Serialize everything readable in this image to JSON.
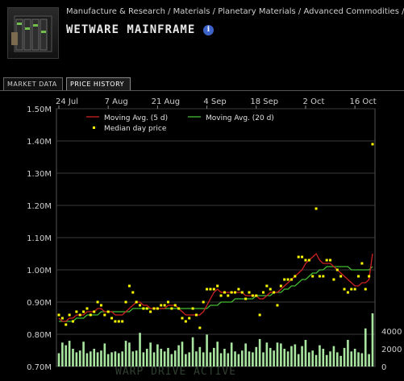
{
  "header": {
    "breadcrumb": "Manufacture & Research / Materials / Planetary Materials / Advanced Commodities /",
    "title": "WETWARE MAINFRAME",
    "info_icon": "info-icon"
  },
  "tabs": [
    {
      "label": "MARKET DATA",
      "active": false
    },
    {
      "label": "PRICE HISTORY",
      "active": true
    }
  ],
  "watermark": "WARP DRIVE ACTIVE",
  "colors": {
    "ma5": "#cc2222",
    "ma20": "#44bb33",
    "median": "#ffff00",
    "volume": "#a8e6a0",
    "grid": "#3a3a3a"
  },
  "chart_data": {
    "type": "line",
    "x_ticks": [
      "24 Jul",
      "7 Aug",
      "21 Aug",
      "4 Sep",
      "18 Sep",
      "2 Oct",
      "16 Oct"
    ],
    "y_ticks": [
      "1.50M",
      "1.40M",
      "1.30M",
      "1.20M",
      "1.10M",
      "1.00M",
      "0.90M",
      "0.80M",
      "0.70M"
    ],
    "ylim": [
      0.7,
      1.5
    ],
    "volume_ticks": [
      "4000",
      "2000",
      "0"
    ],
    "volume_lim": [
      0,
      5000
    ],
    "legend": [
      "Moving Avg. (5 d)",
      "Moving Avg. (20 d)",
      "Median day price"
    ],
    "legend_position": "top-left",
    "grid": true,
    "median": [
      0.86,
      0.85,
      0.83,
      0.86,
      0.84,
      0.87,
      0.86,
      0.87,
      0.88,
      0.86,
      0.87,
      0.9,
      0.89,
      0.86,
      0.87,
      0.85,
      0.84,
      0.84,
      0.84,
      0.9,
      0.95,
      0.93,
      0.9,
      0.89,
      0.88,
      0.88,
      0.87,
      0.88,
      0.88,
      0.89,
      0.89,
      0.9,
      0.88,
      0.89,
      0.88,
      0.85,
      0.84,
      0.85,
      0.88,
      0.86,
      0.82,
      0.9,
      0.94,
      0.94,
      0.94,
      0.95,
      0.92,
      0.93,
      0.92,
      0.93,
      0.93,
      0.94,
      0.93,
      0.91,
      0.93,
      0.92,
      0.92,
      0.86,
      0.93,
      0.95,
      0.94,
      0.93,
      0.89,
      0.95,
      0.97,
      0.97,
      0.97,
      0.98,
      1.04,
      1.04,
      1.03,
      1.03,
      0.98,
      1.19,
      0.98,
      0.98,
      1.03,
      1.03,
      0.97,
      1.0,
      0.98,
      0.94,
      0.93,
      0.94,
      0.94,
      0.98,
      1.02,
      0.94,
      0.98,
      1.39
    ],
    "ma5": [
      0.85,
      0.84,
      0.84,
      0.85,
      0.85,
      0.86,
      0.86,
      0.86,
      0.87,
      0.87,
      0.87,
      0.88,
      0.88,
      0.87,
      0.87,
      0.87,
      0.86,
      0.86,
      0.86,
      0.87,
      0.88,
      0.89,
      0.9,
      0.9,
      0.89,
      0.89,
      0.88,
      0.88,
      0.88,
      0.88,
      0.88,
      0.89,
      0.89,
      0.89,
      0.88,
      0.87,
      0.86,
      0.86,
      0.86,
      0.86,
      0.86,
      0.87,
      0.89,
      0.91,
      0.93,
      0.94,
      0.93,
      0.93,
      0.93,
      0.93,
      0.93,
      0.93,
      0.93,
      0.92,
      0.92,
      0.92,
      0.92,
      0.91,
      0.91,
      0.92,
      0.93,
      0.93,
      0.93,
      0.94,
      0.95,
      0.96,
      0.97,
      0.98,
      0.99,
      1.0,
      1.02,
      1.03,
      1.04,
      1.05,
      1.03,
      1.02,
      1.02,
      1.02,
      1.01,
      1.0,
      0.99,
      0.98,
      0.97,
      0.96,
      0.95,
      0.95,
      0.96,
      0.96,
      0.97,
      1.05
    ],
    "ma20": [
      0.84,
      0.84,
      0.84,
      0.84,
      0.84,
      0.85,
      0.85,
      0.85,
      0.86,
      0.86,
      0.86,
      0.86,
      0.87,
      0.87,
      0.87,
      0.87,
      0.87,
      0.87,
      0.87,
      0.87,
      0.87,
      0.88,
      0.88,
      0.88,
      0.88,
      0.88,
      0.88,
      0.88,
      0.88,
      0.88,
      0.88,
      0.88,
      0.88,
      0.88,
      0.88,
      0.88,
      0.88,
      0.88,
      0.88,
      0.88,
      0.88,
      0.88,
      0.88,
      0.89,
      0.89,
      0.89,
      0.9,
      0.9,
      0.9,
      0.9,
      0.91,
      0.91,
      0.91,
      0.91,
      0.91,
      0.91,
      0.92,
      0.92,
      0.92,
      0.92,
      0.92,
      0.93,
      0.93,
      0.93,
      0.94,
      0.94,
      0.95,
      0.95,
      0.96,
      0.97,
      0.97,
      0.98,
      0.99,
      0.99,
      1.0,
      1.0,
      1.01,
      1.01,
      1.01,
      1.01,
      1.01,
      1.01,
      1.01,
      1.0,
      1.0,
      1.0,
      1.0,
      1.0,
      1.0,
      1.01
    ],
    "volume": [
      1500,
      2700,
      2400,
      2900,
      2000,
      1600,
      1800,
      2800,
      1500,
      1700,
      2000,
      1600,
      1800,
      2600,
      1400,
      1600,
      1700,
      1500,
      1700,
      2900,
      2700,
      1700,
      1800,
      3800,
      1600,
      2000,
      2700,
      1600,
      2500,
      2000,
      1700,
      2100,
      1400,
      1800,
      2400,
      2800,
      1400,
      1600,
      3300,
      1700,
      2200,
      1600,
      3600,
      1600,
      2100,
      2800,
      1500,
      2000,
      1500,
      2700,
      1700,
      1400,
      1800,
      2600,
      1700,
      1600,
      2200,
      3100,
      1600,
      2700,
      2100,
      1800,
      2700,
      2600,
      2000,
      1700,
      2300,
      2500,
      1400,
      2300,
      3000,
      1600,
      1800,
      1300,
      2400,
      2000,
      1300,
      1700,
      2300,
      1600,
      1200,
      2100,
      3000,
      1700,
      2000,
      1600,
      1500,
      4300,
      1400,
      6000
    ]
  }
}
